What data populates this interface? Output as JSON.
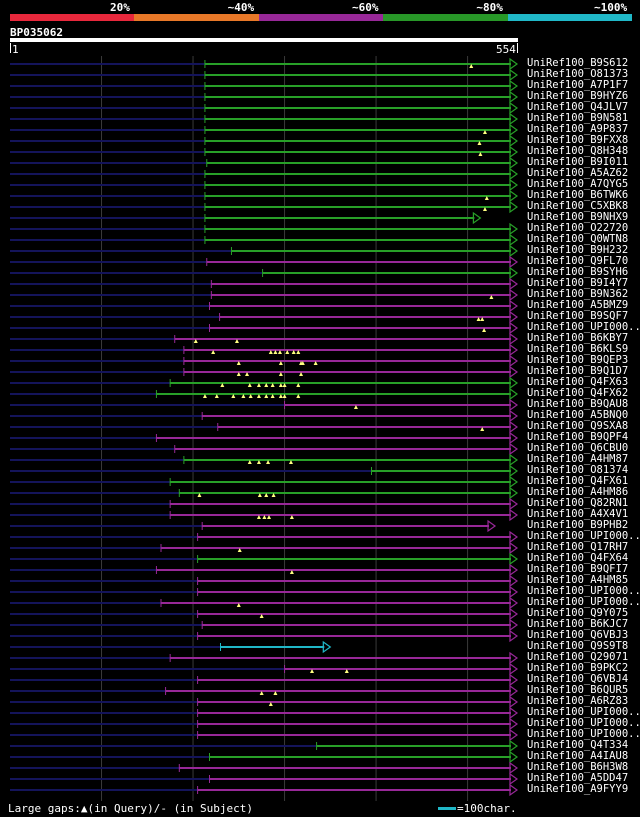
{
  "legend": {
    "segments": [
      {
        "label": "20%",
        "color": "#e8283c"
      },
      {
        "label": "~40%",
        "color": "#e87828"
      },
      {
        "label": "~60%",
        "color": "#982898"
      },
      {
        "label": "~80%",
        "color": "#289828"
      },
      {
        "label": "~100%",
        "color": "#20b8c8"
      }
    ]
  },
  "query": {
    "id": "BP035062",
    "start": "1",
    "end": "554",
    "length": 554
  },
  "colors": {
    "green": "#28a028",
    "purple": "#982898",
    "cyan": "#20b8c8",
    "navy": "#14145a",
    "grid": "#3a3a3a",
    "tri": "#ffff80"
  },
  "hits": [
    {
      "label": "UniRef100_B9S612",
      "color": "green",
      "start": 213,
      "end": 554,
      "nav_start": 0,
      "gaps": [
        504
      ]
    },
    {
      "label": "UniRef100_O81373",
      "color": "green",
      "start": 213,
      "end": 554,
      "nav_start": 0,
      "gaps": []
    },
    {
      "label": "UniRef100_A7P1F7",
      "color": "green",
      "start": 213,
      "end": 554,
      "nav_start": 0,
      "gaps": []
    },
    {
      "label": "UniRef100_B9HYZ6",
      "color": "green",
      "start": 213,
      "end": 554,
      "nav_start": 0,
      "gaps": []
    },
    {
      "label": "UniRef100_Q4JLV7",
      "color": "green",
      "start": 213,
      "end": 554,
      "nav_start": 0,
      "gaps": []
    },
    {
      "label": "UniRef100_B9N581",
      "color": "green",
      "start": 213,
      "end": 554,
      "nav_start": 0,
      "gaps": []
    },
    {
      "label": "UniRef100_A9P837",
      "color": "green",
      "start": 213,
      "end": 554,
      "nav_start": 0,
      "gaps": [
        519
      ]
    },
    {
      "label": "UniRef100_B9FXX8",
      "color": "green",
      "start": 213,
      "end": 554,
      "nav_start": 0,
      "gaps": [
        513
      ]
    },
    {
      "label": "UniRef100_Q8H348",
      "color": "green",
      "start": 213,
      "end": 554,
      "nav_start": 0,
      "gaps": [
        514
      ]
    },
    {
      "label": "UniRef100_B9I011",
      "color": "green",
      "start": 215,
      "end": 554,
      "nav_start": 0,
      "gaps": []
    },
    {
      "label": "UniRef100_A5AZ62",
      "color": "green",
      "start": 213,
      "end": 554,
      "nav_start": 0,
      "gaps": []
    },
    {
      "label": "UniRef100_A7QYG5",
      "color": "green",
      "start": 213,
      "end": 554,
      "nav_start": 0,
      "gaps": []
    },
    {
      "label": "UniRef100_B6TWK6",
      "color": "green",
      "start": 213,
      "end": 554,
      "nav_start": 0,
      "gaps": [
        521
      ]
    },
    {
      "label": "UniRef100_C5XBK8",
      "color": "green",
      "start": 213,
      "end": 554,
      "nav_start": 0,
      "gaps": [
        519
      ]
    },
    {
      "label": "UniRef100_B9NHX9",
      "color": "green",
      "start": 213,
      "end": 514,
      "nav_start": 0,
      "gaps": []
    },
    {
      "label": "UniRef100_O22720",
      "color": "green",
      "start": 213,
      "end": 554,
      "nav_start": 0,
      "gaps": []
    },
    {
      "label": "UniRef100_Q0WTN8",
      "color": "green",
      "start": 213,
      "end": 554,
      "nav_start": 0,
      "gaps": []
    },
    {
      "label": "UniRef100_B9H232",
      "color": "green",
      "start": 242,
      "end": 554,
      "nav_start": 0,
      "gaps": []
    },
    {
      "label": "UniRef100_Q9FL70",
      "color": "purple",
      "start": 215,
      "end": 554,
      "nav_start": 0,
      "gaps": []
    },
    {
      "label": "UniRef100_B9SYH6",
      "color": "green",
      "start": 276,
      "end": 554,
      "nav_start": 0,
      "gaps": []
    },
    {
      "label": "UniRef100_B9I4Y7",
      "color": "purple",
      "start": 220,
      "end": 554,
      "nav_start": 0,
      "gaps": []
    },
    {
      "label": "UniRef100_B9N362",
      "color": "purple",
      "start": 220,
      "end": 554,
      "nav_start": 0,
      "gaps": [
        526
      ]
    },
    {
      "label": "UniRef100_A5BMZ9",
      "color": "purple",
      "start": 218,
      "end": 554,
      "nav_start": 0,
      "gaps": []
    },
    {
      "label": "UniRef100_B9SQF7",
      "color": "purple",
      "start": 229,
      "end": 554,
      "nav_start": 0,
      "gaps": [
        512,
        516
      ]
    },
    {
      "label": "UniRef100_UPI000..",
      "color": "purple",
      "start": 218,
      "end": 554,
      "nav_start": 0,
      "gaps": [
        518
      ]
    },
    {
      "label": "UniRef100_B6KBY7",
      "color": "purple",
      "start": 180,
      "end": 554,
      "nav_start": 0,
      "gaps": [
        203,
        248
      ]
    },
    {
      "label": "UniRef100_B6KLS9",
      "color": "purple",
      "start": 190,
      "end": 554,
      "nav_start": 0,
      "gaps": [
        222,
        285,
        290,
        295,
        303,
        310,
        315
      ]
    },
    {
      "label": "UniRef100_B9QEP3",
      "color": "purple",
      "start": 190,
      "end": 554,
      "nav_start": 0,
      "gaps": [
        250,
        296,
        318,
        320,
        334
      ]
    },
    {
      "label": "UniRef100_B9Q1D7",
      "color": "purple",
      "start": 190,
      "end": 554,
      "nav_start": 0,
      "gaps": [
        250,
        259,
        296,
        318
      ]
    },
    {
      "label": "UniRef100_Q4FX63",
      "color": "green",
      "start": 175,
      "end": 554,
      "nav_start": 0,
      "gaps": [
        232,
        262,
        272,
        280,
        287,
        296,
        300,
        315
      ]
    },
    {
      "label": "UniRef100_Q4FX62",
      "color": "green",
      "start": 160,
      "end": 554,
      "nav_start": 0,
      "gaps": [
        213,
        226,
        244,
        255,
        263,
        272,
        280,
        287,
        296,
        300,
        315
      ]
    },
    {
      "label": "UniRef100_B9QAU8",
      "color": "purple",
      "start": 300,
      "end": 554,
      "nav_start": 0,
      "gaps": [
        378
      ]
    },
    {
      "label": "UniRef100_A5BNQ0",
      "color": "purple",
      "start": 210,
      "end": 554,
      "nav_start": 0,
      "gaps": []
    },
    {
      "label": "UniRef100_Q9SXA8",
      "color": "purple",
      "start": 227,
      "end": 554,
      "nav_start": 0,
      "gaps": [
        516
      ]
    },
    {
      "label": "UniRef100_B9QPF4",
      "color": "purple",
      "start": 160,
      "end": 554,
      "nav_start": 0,
      "gaps": []
    },
    {
      "label": "UniRef100_Q6CBU0",
      "color": "purple",
      "start": 180,
      "end": 554,
      "nav_start": 0,
      "gaps": []
    },
    {
      "label": "UniRef100_A4HM87",
      "color": "green",
      "start": 190,
      "end": 554,
      "nav_start": 0,
      "gaps": [
        262,
        272,
        282,
        307
      ]
    },
    {
      "label": "UniRef100_O81374",
      "color": "green",
      "start": 395,
      "end": 554,
      "nav_start": 0,
      "gaps": []
    },
    {
      "label": "UniRef100_Q4FX61",
      "color": "green",
      "start": 175,
      "end": 554,
      "nav_start": 0,
      "gaps": []
    },
    {
      "label": "UniRef100_A4HM86",
      "color": "green",
      "start": 185,
      "end": 554,
      "nav_start": 0,
      "gaps": [
        207,
        273,
        280,
        288
      ]
    },
    {
      "label": "UniRef100_Q82RN1",
      "color": "purple",
      "start": 175,
      "end": 554,
      "nav_start": 0,
      "gaps": []
    },
    {
      "label": "UniRef100_A4X4V1",
      "color": "purple",
      "start": 175,
      "end": 554,
      "nav_start": 0,
      "gaps": [
        272,
        278,
        283,
        308
      ]
    },
    {
      "label": "UniRef100_B9PHB2",
      "color": "purple",
      "start": 210,
      "end": 530,
      "nav_start": 0,
      "gaps": []
    },
    {
      "label": "UniRef100_UPI000..",
      "color": "purple",
      "start": 205,
      "end": 554,
      "nav_start": 0,
      "gaps": []
    },
    {
      "label": "UniRef100_Q17RH7",
      "color": "purple",
      "start": 165,
      "end": 554,
      "nav_start": 0,
      "gaps": [
        251
      ]
    },
    {
      "label": "UniRef100_Q4FX64",
      "color": "green",
      "start": 205,
      "end": 554,
      "nav_start": 0,
      "gaps": []
    },
    {
      "label": "UniRef100_B9QFI7",
      "color": "purple",
      "start": 160,
      "end": 554,
      "nav_start": 0,
      "gaps": [
        308
      ]
    },
    {
      "label": "UniRef100_A4HM85",
      "color": "purple",
      "start": 205,
      "end": 554,
      "nav_start": 0,
      "gaps": []
    },
    {
      "label": "UniRef100_UPI000..",
      "color": "purple",
      "start": 205,
      "end": 554,
      "nav_start": 0,
      "gaps": []
    },
    {
      "label": "UniRef100_UPI000..",
      "color": "purple",
      "start": 165,
      "end": 554,
      "nav_start": 0,
      "gaps": [
        250
      ]
    },
    {
      "label": "UniRef100_Q9Y075",
      "color": "purple",
      "start": 205,
      "end": 554,
      "nav_start": 0,
      "gaps": [
        275
      ]
    },
    {
      "label": "UniRef100_B6KJC7",
      "color": "purple",
      "start": 210,
      "end": 554,
      "nav_start": 0,
      "gaps": []
    },
    {
      "label": "UniRef100_Q6VBJ3",
      "color": "purple",
      "start": 205,
      "end": 554,
      "nav_start": 0,
      "gaps": []
    },
    {
      "label": "UniRef100_Q9S9T8",
      "color": "cyan",
      "start": 230,
      "end": 350,
      "nav_start": 0,
      "gaps": []
    },
    {
      "label": "UniRef100_Q29071",
      "color": "purple",
      "start": 175,
      "end": 554,
      "nav_start": 0,
      "gaps": []
    },
    {
      "label": "UniRef100_B9PKC2",
      "color": "purple",
      "start": 300,
      "end": 554,
      "nav_start": 0,
      "gaps": [
        330,
        368
      ]
    },
    {
      "label": "UniRef100_Q6VBJ4",
      "color": "purple",
      "start": 205,
      "end": 554,
      "nav_start": 0,
      "gaps": []
    },
    {
      "label": "UniRef100_B6QUR5",
      "color": "purple",
      "start": 170,
      "end": 554,
      "nav_start": 0,
      "gaps": [
        275,
        290
      ]
    },
    {
      "label": "UniRef100_A6RZ83",
      "color": "purple",
      "start": 205,
      "end": 554,
      "nav_start": 0,
      "gaps": [
        285
      ]
    },
    {
      "label": "UniRef100_UPI000..",
      "color": "purple",
      "start": 205,
      "end": 554,
      "nav_start": 0,
      "gaps": []
    },
    {
      "label": "UniRef100_UPI000..",
      "color": "purple",
      "start": 205,
      "end": 554,
      "nav_start": 0,
      "gaps": []
    },
    {
      "label": "UniRef100_UPI000..",
      "color": "purple",
      "start": 205,
      "end": 554,
      "nav_start": 0,
      "gaps": []
    },
    {
      "label": "UniRef100_Q4T334",
      "color": "green",
      "start": 335,
      "end": 554,
      "nav_start": 0,
      "gaps": []
    },
    {
      "label": "UniRef100_A4IAU8",
      "color": "green",
      "start": 218,
      "end": 554,
      "nav_start": 0,
      "gaps": []
    },
    {
      "label": "UniRef100_B6H3W8",
      "color": "purple",
      "start": 185,
      "end": 554,
      "nav_start": 0,
      "gaps": []
    },
    {
      "label": "UniRef100_A5DD47",
      "color": "purple",
      "start": 218,
      "end": 554,
      "nav_start": 0,
      "gaps": []
    },
    {
      "label": "UniRef100_A9FYY9",
      "color": "purple",
      "start": 205,
      "end": 554,
      "nav_start": 0,
      "gaps": []
    }
  ],
  "footer": {
    "gaps_text": "Large gaps:▲(in Query)/- (in Subject)",
    "scale_text": "=100char."
  }
}
